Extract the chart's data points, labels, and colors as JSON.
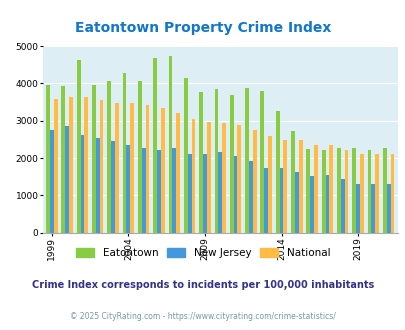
{
  "title": "Eatontown Property Crime Index",
  "years": [
    1999,
    2000,
    2001,
    2002,
    2003,
    2004,
    2005,
    2006,
    2007,
    2008,
    2009,
    2010,
    2011,
    2012,
    2013,
    2014,
    2015,
    2016,
    2017,
    2018,
    2019,
    2020,
    2021
  ],
  "eatontown": [
    3970,
    3920,
    4620,
    3970,
    4060,
    4290,
    4080,
    4680,
    4730,
    4140,
    3770,
    3840,
    3700,
    3890,
    3810,
    3270,
    2720,
    2240,
    2220,
    2260,
    2280,
    2220,
    2280
  ],
  "new_jersey": [
    2760,
    2850,
    2630,
    2530,
    2450,
    2340,
    2280,
    2220,
    2280,
    2100,
    2100,
    2150,
    2060,
    1920,
    1740,
    1740,
    1630,
    1530,
    1550,
    1440,
    1310,
    1310,
    1310
  ],
  "national": [
    3590,
    3650,
    3630,
    3570,
    3490,
    3470,
    3420,
    3330,
    3220,
    3050,
    2970,
    2950,
    2900,
    2760,
    2590,
    2490,
    2490,
    2360,
    2360,
    2210,
    2100,
    2110,
    2110
  ],
  "eatontown_color": "#88cc44",
  "nj_color": "#4499dd",
  "national_color": "#ffbb44",
  "bg_color": "#ddeef5",
  "title_color": "#1177cc",
  "ylabel_max": 5000,
  "yticks": [
    0,
    1000,
    2000,
    3000,
    4000,
    5000
  ],
  "xtick_years": [
    1999,
    2004,
    2009,
    2014,
    2019
  ],
  "subtitle": "Crime Index corresponds to incidents per 100,000 inhabitants",
  "footer": "© 2025 CityRating.com - https://www.cityrating.com/crime-statistics/",
  "subtitle_color": "#333388",
  "footer_color": "#7799aa",
  "legend_labels": [
    "Eatontown",
    "New Jersey",
    "National"
  ]
}
